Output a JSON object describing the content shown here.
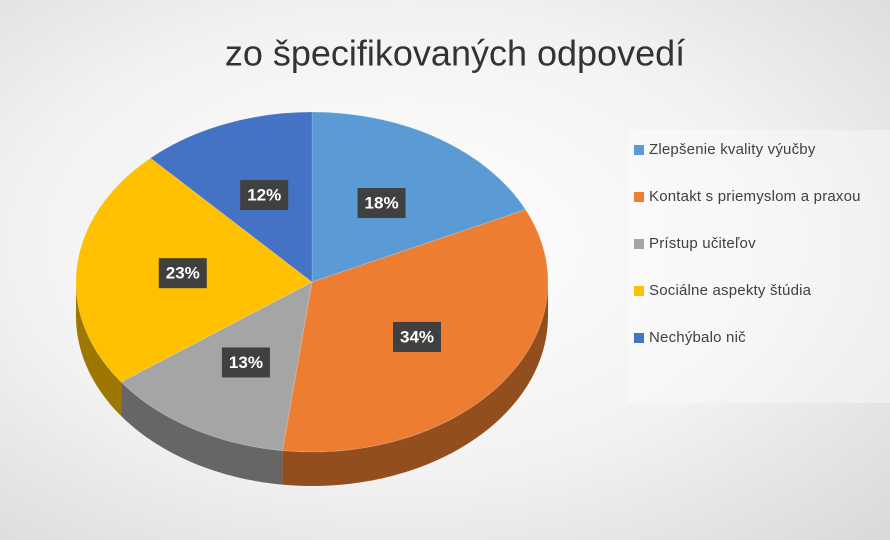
{
  "chart_data": {
    "type": "pie3d",
    "title": "zo špecifikovaných odpovedí",
    "categories": [
      "Zlepšenie kvality výučby",
      "Kontakt s priemyslom a praxou",
      "Prístup učiteľov",
      "Sociálne aspekty štúdia",
      "Nechýbalo nič"
    ],
    "values": [
      18,
      34,
      13,
      23,
      12
    ],
    "value_labels": [
      "18%",
      "34%",
      "13%",
      "23%",
      "12%"
    ],
    "colors": [
      "#5b9bd5",
      "#ed7d31",
      "#a5a5a5",
      "#ffc000",
      "#4472c4"
    ],
    "legend": "right"
  }
}
